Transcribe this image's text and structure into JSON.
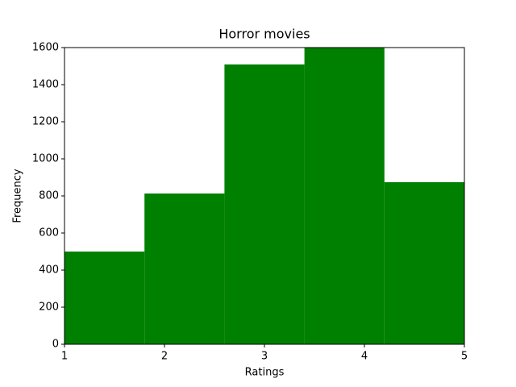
{
  "chart_data": {
    "type": "histogram",
    "title": "Horror movies",
    "x_label": "Ratings",
    "y_label": "Frequency",
    "bins": [
      1,
      1.8,
      2.6,
      3.4,
      4.2,
      5
    ],
    "values": [
      500,
      813,
      1509,
      1600,
      874
    ],
    "color": "#008000",
    "xlim": [
      1,
      5
    ],
    "xticks": [
      1,
      2,
      3,
      4,
      5
    ],
    "ylim": [
      0,
      1600
    ],
    "yticks": [
      0,
      200,
      400,
      600,
      800,
      1000,
      1200,
      1400,
      1600
    ],
    "grid": false
  }
}
